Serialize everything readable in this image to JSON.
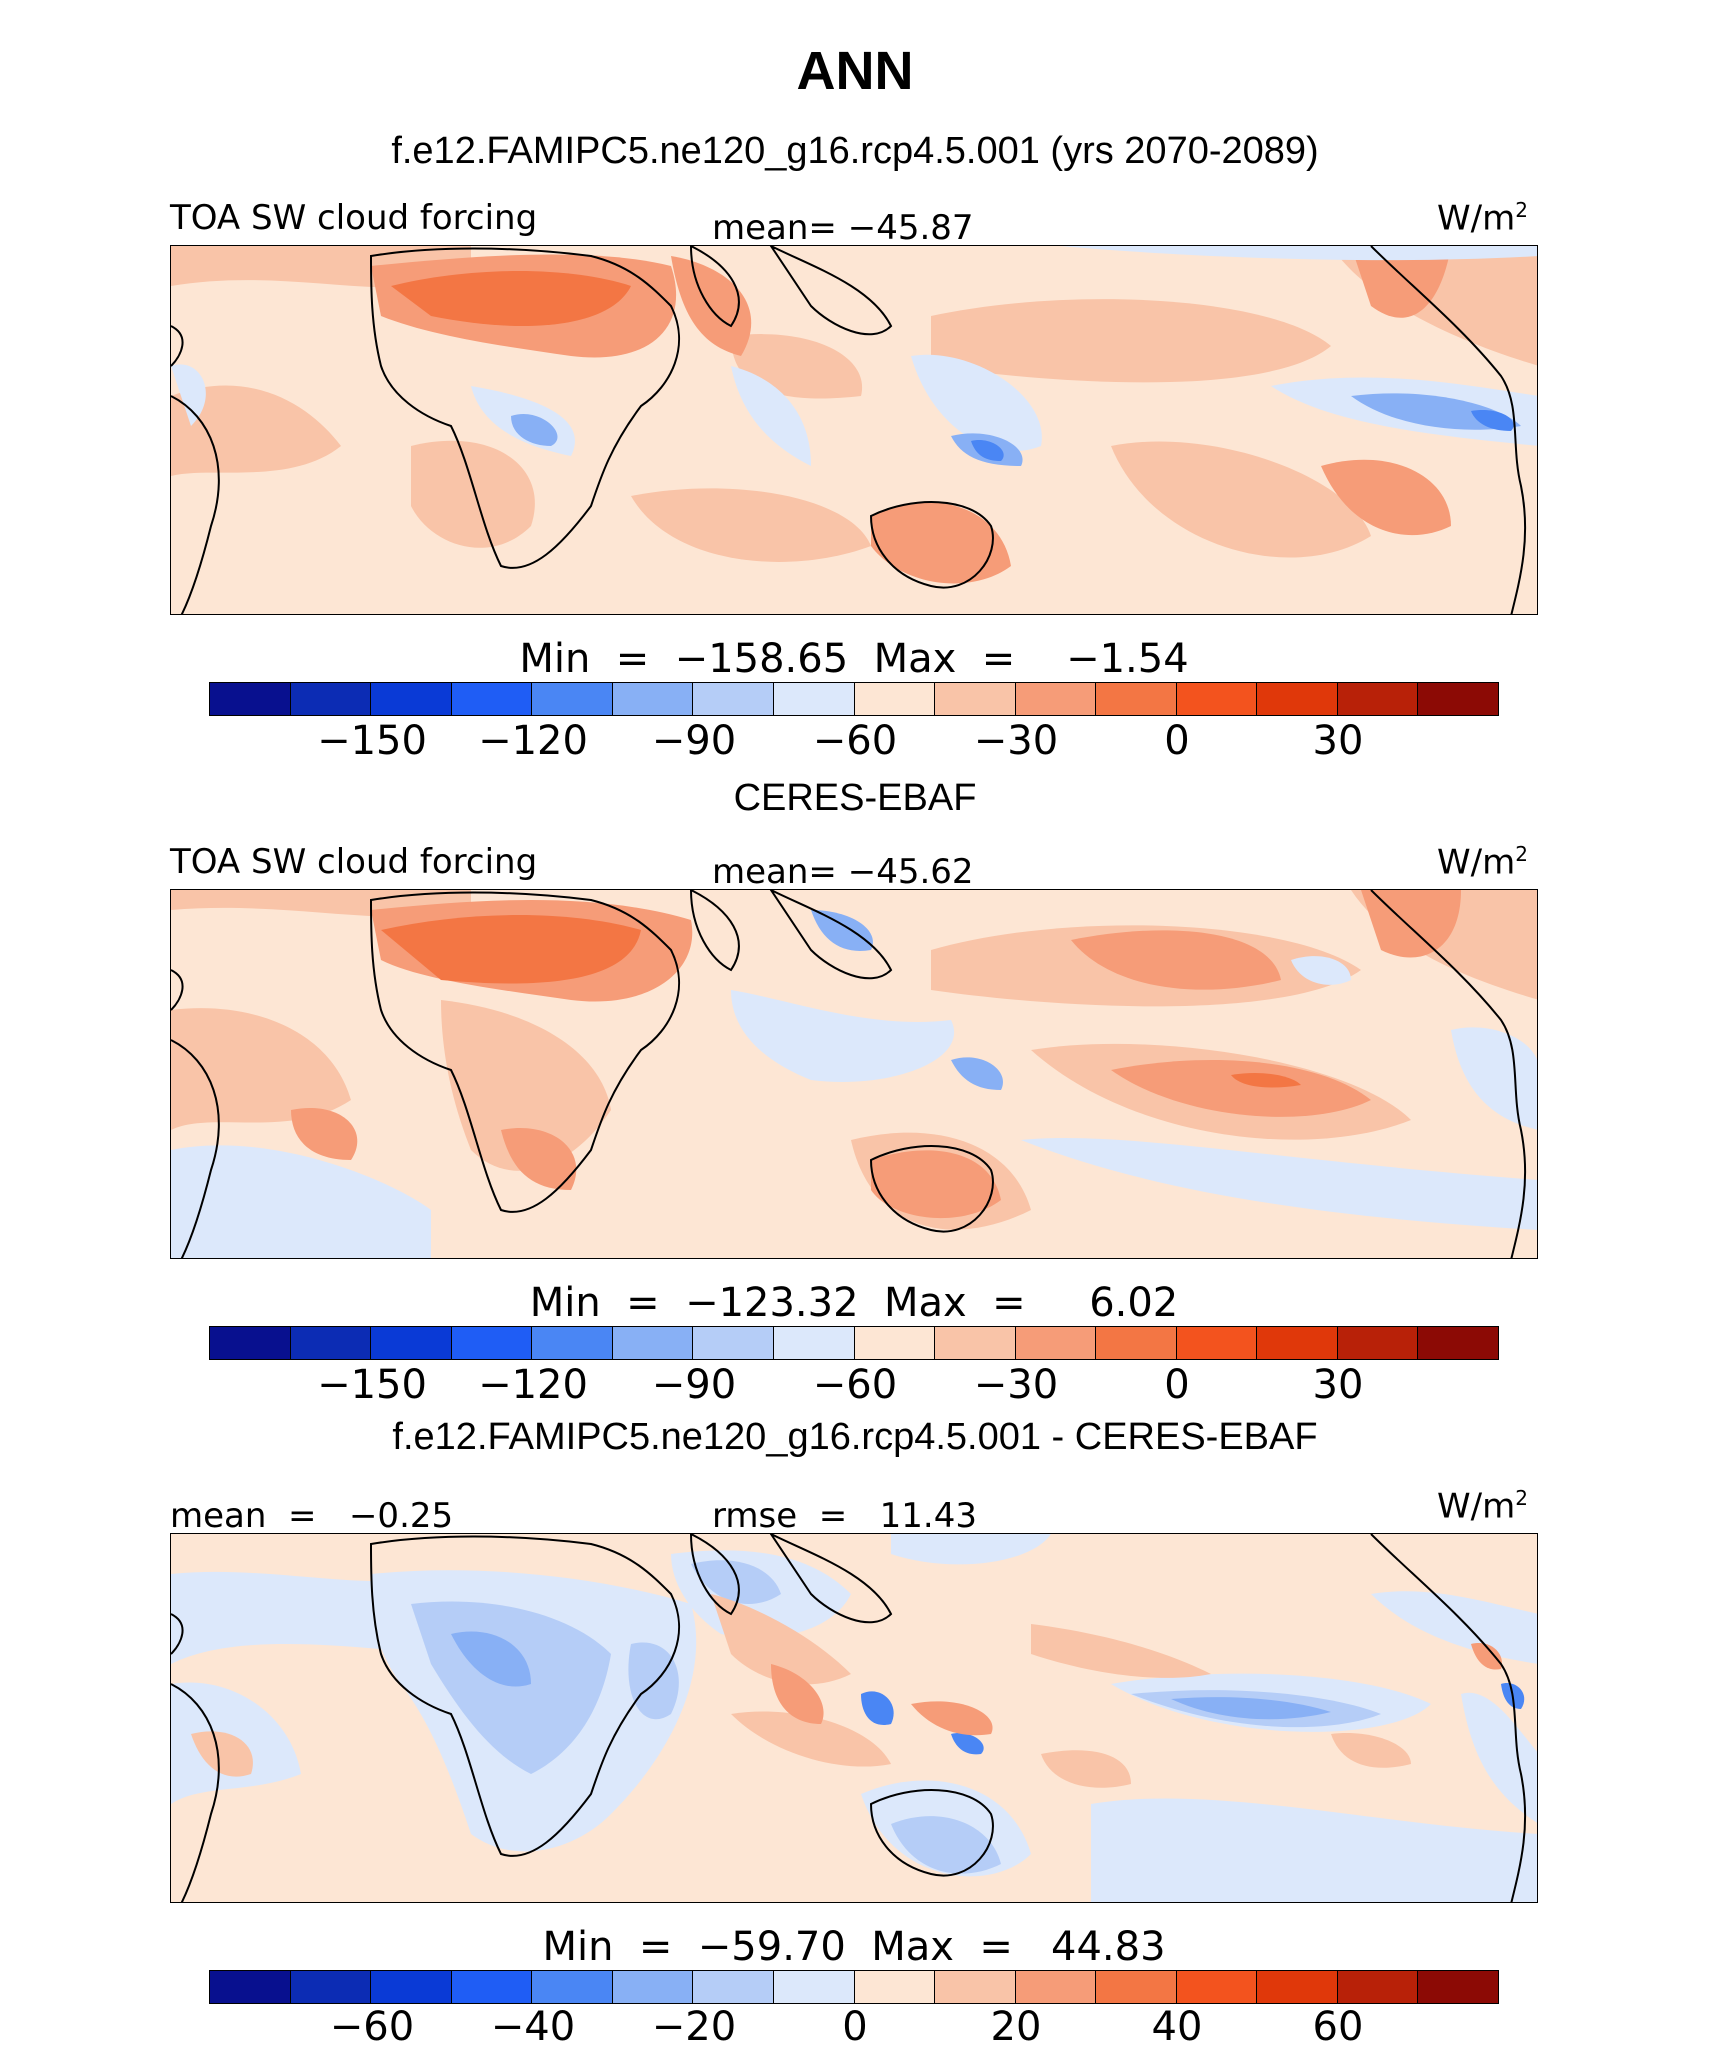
{
  "title": "ANN",
  "colors": {
    "levels": [
      "#08108f",
      "#0c2cb4",
      "#0a3ad6",
      "#1f5df5",
      "#4a86f4",
      "#88b0f5",
      "#b5cdf7",
      "#dce8fb",
      "#fde6d4",
      "#f9c4a8",
      "#f69c78",
      "#f37644",
      "#f3531e",
      "#e0380a",
      "#b82108",
      "#8c0a05"
    ]
  },
  "panels": [
    {
      "heading": "f.e12.FAMIPC5.ne120_g16.rcp4.5.001 (yrs 2070-2089)",
      "left_label": "TOA SW cloud forcing",
      "center_label": "mean= −45.87",
      "units": "W/m",
      "units_sup": "2",
      "stats": "Min  =  −158.65  Max  =    −1.54",
      "ticks": [
        "−150",
        "−120",
        "−90",
        "−60",
        "−30",
        "0",
        "30"
      ]
    },
    {
      "heading": "CERES-EBAF",
      "left_label": "TOA SW cloud forcing",
      "center_label": "mean= −45.62",
      "units": "W/m",
      "units_sup": "2",
      "stats": "Min  =  −123.32  Max  =     6.02",
      "ticks": [
        "−150",
        "−120",
        "−90",
        "−60",
        "−30",
        "0",
        "30"
      ]
    },
    {
      "heading": "f.e12.FAMIPC5.ne120_g16.rcp4.5.001 - CERES-EBAF",
      "left_label": "mean  =   −0.25",
      "center_label": "rmse  =   11.43",
      "units": "W/m",
      "units_sup": "2",
      "stats": "Min  =  −59.70  Max  =   44.83",
      "ticks": [
        "−60",
        "−40",
        "−20",
        "0",
        "20",
        "40",
        "60"
      ]
    }
  ]
}
